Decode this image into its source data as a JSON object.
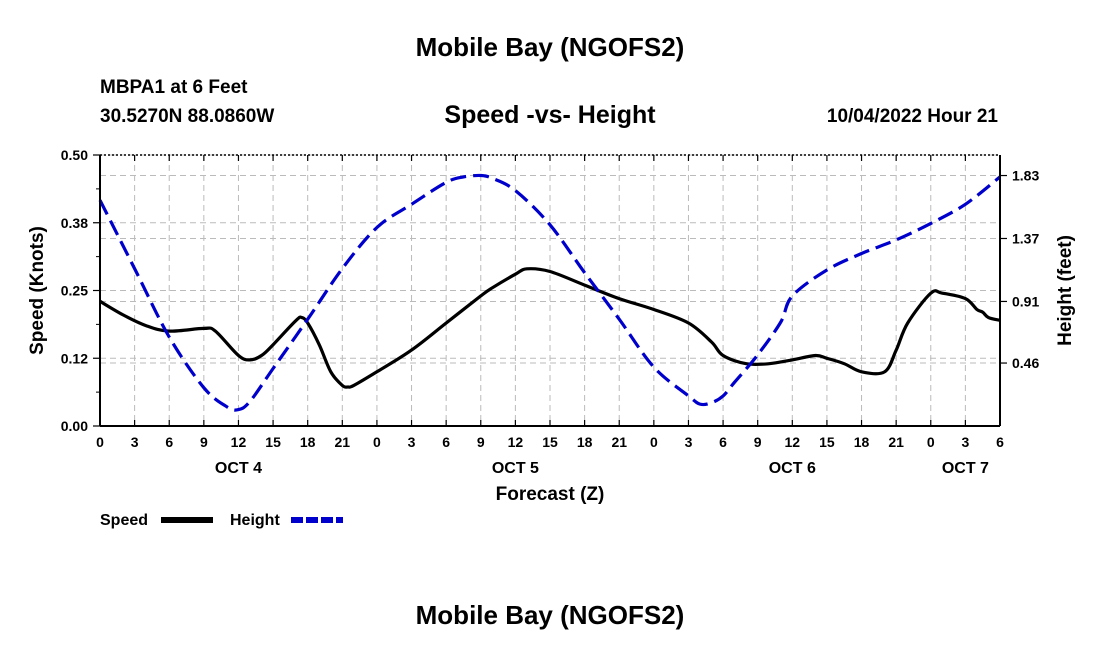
{
  "chart_data": {
    "type": "line",
    "title": "Mobile Bay (NGOFS2)",
    "subtitle": "Speed -vs- Height",
    "station": "MBPA1 at 6 Feet",
    "coordinates": "30.5270N  88.0860W",
    "timestamp": "10/04/2022 Hour 21",
    "xlabel": "Forecast (Z)",
    "ylabel": "Speed (Knots)",
    "y2label": "Height (feet)",
    "x_range_hours": [
      0,
      78
    ],
    "ylim": [
      0,
      0.5
    ],
    "y2lim": [
      0,
      1.98
    ],
    "x_tick_hours": [
      0,
      3,
      6,
      9,
      12,
      15,
      18,
      21,
      24,
      27,
      30,
      33,
      36,
      39,
      42,
      45,
      48,
      51,
      54,
      57,
      60,
      63,
      66,
      69,
      72,
      75,
      78
    ],
    "x_tick_labels": [
      "0",
      "3",
      "6",
      "9",
      "12",
      "15",
      "18",
      "21",
      "0",
      "3",
      "6",
      "9",
      "12",
      "15",
      "18",
      "21",
      "0",
      "3",
      "6",
      "9",
      "12",
      "15",
      "18",
      "21",
      "0",
      "3",
      "6"
    ],
    "y_tick_values": [
      0.0,
      0.125,
      0.25,
      0.375,
      0.5
    ],
    "y_tick_labels": [
      "0.00",
      "0.12",
      "0.25",
      "0.38",
      "0.50"
    ],
    "y2_tick_values": [
      0.46,
      0.91,
      1.37,
      1.83
    ],
    "y2_tick_labels": [
      "0.46",
      "0.91",
      "1.37",
      "1.83"
    ],
    "day_labels": [
      {
        "hour": 12,
        "label": "OCT 4"
      },
      {
        "hour": 36,
        "label": "OCT 5"
      },
      {
        "hour": 60,
        "label": "OCT 6"
      },
      {
        "hour": 75,
        "label": "OCT 7"
      }
    ],
    "series": [
      {
        "name": "Speed",
        "axis": "left",
        "style": "solid",
        "color": "#000000",
        "x": [
          0,
          2,
          4,
          6,
          9,
          10,
          12,
          13,
          14,
          15,
          17,
          17.5,
          18,
          19,
          20,
          21,
          21.5,
          22,
          24,
          27,
          30,
          33,
          34,
          36,
          37,
          39,
          42,
          45,
          48,
          51,
          53,
          54,
          56,
          58,
          60,
          62,
          63,
          64.5,
          66,
          68,
          69,
          70,
          72,
          73,
          75,
          76,
          76.5,
          77,
          78
        ],
        "y": [
          0.23,
          0.205,
          0.185,
          0.175,
          0.18,
          0.175,
          0.13,
          0.122,
          0.13,
          0.15,
          0.195,
          0.2,
          0.19,
          0.15,
          0.1,
          0.075,
          0.072,
          0.075,
          0.1,
          0.14,
          0.19,
          0.24,
          0.255,
          0.28,
          0.29,
          0.285,
          0.26,
          0.235,
          0.215,
          0.19,
          0.155,
          0.13,
          0.115,
          0.115,
          0.122,
          0.13,
          0.125,
          0.115,
          0.1,
          0.1,
          0.14,
          0.19,
          0.245,
          0.245,
          0.235,
          0.215,
          0.21,
          0.2,
          0.195
        ]
      },
      {
        "name": "Height",
        "axis": "right",
        "style": "dashed",
        "color": "#0000cc",
        "x": [
          0,
          3,
          6,
          9,
          11,
          12,
          13,
          15,
          18,
          21,
          24,
          27,
          30,
          31.5,
          33,
          34,
          36,
          39,
          42,
          45,
          48,
          51,
          52,
          53,
          54,
          55,
          57,
          59,
          60,
          63,
          66,
          69,
          72,
          75,
          78
        ],
        "y": [
          1.65,
          1.15,
          0.65,
          0.28,
          0.14,
          0.12,
          0.18,
          0.42,
          0.78,
          1.15,
          1.45,
          1.62,
          1.78,
          1.82,
          1.83,
          1.81,
          1.72,
          1.47,
          1.12,
          0.78,
          0.43,
          0.22,
          0.16,
          0.17,
          0.22,
          0.32,
          0.52,
          0.76,
          0.95,
          1.14,
          1.26,
          1.36,
          1.48,
          1.62,
          1.82
        ]
      }
    ],
    "legend": [
      {
        "label": "Speed",
        "style": "solid",
        "color": "#000000"
      },
      {
        "label": "Height",
        "style": "dashed",
        "color": "#0000cc"
      }
    ],
    "legend_position": "bottom-left",
    "grid": true
  },
  "bottom_title": "Mobile Bay (NGOFS2)"
}
